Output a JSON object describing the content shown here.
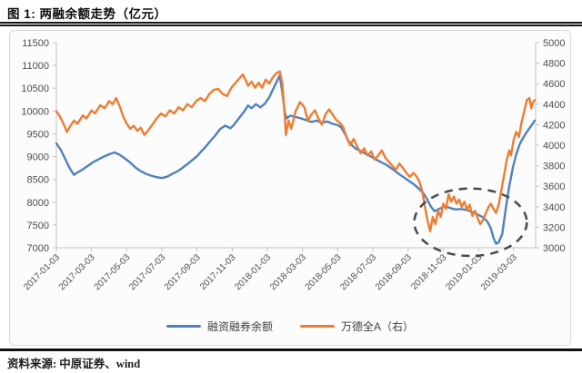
{
  "title": "图 1: 两融余额走势（亿元）",
  "source_note": "资料来源: 中原证券、wind",
  "colors": {
    "series_blue": "#4f81bd",
    "series_orange": "#ed7d31",
    "axis_text": "#4d4d4d",
    "axis_line": "#c3c3c3",
    "annotation": "#4a4a4a",
    "panel_border": "#d8d8d8",
    "rule": "#161616"
  },
  "legend": {
    "items": [
      {
        "label": "融资融券余额",
        "color": "#4f81bd"
      },
      {
        "label": "万德全A（右）",
        "color": "#ed7d31"
      }
    ]
  },
  "chart_data": {
    "type": "line",
    "title": "两融余额走势（亿元）",
    "grid": false,
    "legend_position": "bottom",
    "x_ticks": [
      "2017-01-03",
      "2017-03-03",
      "2017-05-03",
      "2017-07-03",
      "2017-09-03",
      "2017-11-03",
      "2018-01-03",
      "2018-03-03",
      "2018-05-03",
      "2018-07-03",
      "2018-09-03",
      "2018-11-03",
      "2019-01-03",
      "2019-03-03"
    ],
    "x_tick_month_index": [
      0,
      2,
      4,
      6,
      8,
      10,
      12,
      14,
      16,
      18,
      20,
      22,
      24,
      26
    ],
    "x_range_months": [
      0,
      27.25
    ],
    "left_axis": {
      "min": 7000,
      "max": 11500,
      "tick_step": 500,
      "ticks": [
        11500,
        11000,
        10500,
        10000,
        9500,
        9000,
        8500,
        8000,
        7500,
        7000
      ]
    },
    "right_axis": {
      "min": 3000,
      "max": 5000,
      "tick_step": 200,
      "ticks": [
        5000,
        4800,
        4600,
        4400,
        4200,
        4000,
        3800,
        3600,
        3400,
        3200,
        3000
      ]
    },
    "series": [
      {
        "name": "融资融券余额",
        "axis": "left",
        "color": "#4f81bd",
        "points": [
          [
            0,
            9290
          ],
          [
            0.25,
            9150
          ],
          [
            0.5,
            8950
          ],
          [
            0.75,
            8750
          ],
          [
            1,
            8600
          ],
          [
            1.2,
            8650
          ],
          [
            1.5,
            8720
          ],
          [
            1.8,
            8800
          ],
          [
            2.1,
            8880
          ],
          [
            2.4,
            8940
          ],
          [
            2.7,
            9000
          ],
          [
            3,
            9050
          ],
          [
            3.3,
            9090
          ],
          [
            3.6,
            9040
          ],
          [
            3.9,
            8960
          ],
          [
            4.2,
            8870
          ],
          [
            4.5,
            8760
          ],
          [
            4.8,
            8680
          ],
          [
            5.1,
            8620
          ],
          [
            5.4,
            8580
          ],
          [
            5.7,
            8550
          ],
          [
            6,
            8530
          ],
          [
            6.3,
            8560
          ],
          [
            6.6,
            8620
          ],
          [
            6.9,
            8680
          ],
          [
            7.2,
            8760
          ],
          [
            7.5,
            8850
          ],
          [
            7.75,
            8930
          ],
          [
            8,
            9010
          ],
          [
            8.25,
            9120
          ],
          [
            8.5,
            9220
          ],
          [
            8.75,
            9340
          ],
          [
            9,
            9450
          ],
          [
            9.3,
            9600
          ],
          [
            9.6,
            9680
          ],
          [
            9.9,
            9620
          ],
          [
            10.1,
            9700
          ],
          [
            10.4,
            9850
          ],
          [
            10.7,
            10000
          ],
          [
            10.9,
            10120
          ],
          [
            11.1,
            10060
          ],
          [
            11.35,
            10150
          ],
          [
            11.6,
            10080
          ],
          [
            11.85,
            10160
          ],
          [
            12.1,
            10300
          ],
          [
            12.35,
            10500
          ],
          [
            12.7,
            10780
          ],
          [
            12.85,
            10400
          ],
          [
            13,
            9950
          ],
          [
            13.1,
            9840
          ],
          [
            13.3,
            9900
          ],
          [
            13.6,
            9870
          ],
          [
            13.9,
            9840
          ],
          [
            14.2,
            9800
          ],
          [
            14.5,
            9760
          ],
          [
            14.8,
            9790
          ],
          [
            15.1,
            9740
          ],
          [
            15.4,
            9770
          ],
          [
            15.7,
            9720
          ],
          [
            16,
            9690
          ],
          [
            16.2,
            9640
          ],
          [
            16.4,
            9500
          ],
          [
            16.6,
            9350
          ],
          [
            16.8,
            9250
          ],
          [
            17,
            9180
          ],
          [
            17.3,
            9120
          ],
          [
            17.6,
            9060
          ],
          [
            17.9,
            9000
          ],
          [
            18.2,
            8930
          ],
          [
            18.5,
            8870
          ],
          [
            18.8,
            8810
          ],
          [
            19.1,
            8730
          ],
          [
            19.4,
            8640
          ],
          [
            19.7,
            8560
          ],
          [
            20,
            8480
          ],
          [
            20.3,
            8400
          ],
          [
            20.6,
            8300
          ],
          [
            20.9,
            8180
          ],
          [
            21.1,
            8050
          ],
          [
            21.3,
            7900
          ],
          [
            21.5,
            7800
          ],
          [
            21.8,
            7860
          ],
          [
            22.1,
            7910
          ],
          [
            22.4,
            7870
          ],
          [
            22.7,
            7840
          ],
          [
            23,
            7850
          ],
          [
            23.3,
            7830
          ],
          [
            23.6,
            7790
          ],
          [
            23.9,
            7740
          ],
          [
            24.2,
            7680
          ],
          [
            24.5,
            7580
          ],
          [
            24.7,
            7430
          ],
          [
            24.85,
            7220
          ],
          [
            25,
            7090
          ],
          [
            25.15,
            7120
          ],
          [
            25.35,
            7300
          ],
          [
            25.55,
            7850
          ],
          [
            25.75,
            8350
          ],
          [
            25.95,
            8750
          ],
          [
            26.15,
            9050
          ],
          [
            26.35,
            9280
          ],
          [
            26.55,
            9420
          ],
          [
            26.75,
            9540
          ],
          [
            26.95,
            9650
          ],
          [
            27.2,
            9790
          ]
        ]
      },
      {
        "name": "万德全A（右）",
        "axis": "right",
        "color": "#ed7d31",
        "points": [
          [
            0,
            4330
          ],
          [
            0.2,
            4280
          ],
          [
            0.4,
            4210
          ],
          [
            0.6,
            4130
          ],
          [
            0.8,
            4190
          ],
          [
            1,
            4240
          ],
          [
            1.2,
            4210
          ],
          [
            1.5,
            4290
          ],
          [
            1.7,
            4260
          ],
          [
            2,
            4340
          ],
          [
            2.2,
            4310
          ],
          [
            2.5,
            4390
          ],
          [
            2.75,
            4360
          ],
          [
            3,
            4430
          ],
          [
            3.2,
            4400
          ],
          [
            3.4,
            4460
          ],
          [
            3.6,
            4380
          ],
          [
            3.8,
            4280
          ],
          [
            4,
            4210
          ],
          [
            4.2,
            4160
          ],
          [
            4.4,
            4190
          ],
          [
            4.6,
            4140
          ],
          [
            4.8,
            4170
          ],
          [
            5,
            4100
          ],
          [
            5.2,
            4140
          ],
          [
            5.45,
            4200
          ],
          [
            5.7,
            4260
          ],
          [
            5.95,
            4310
          ],
          [
            6.2,
            4280
          ],
          [
            6.45,
            4340
          ],
          [
            6.7,
            4310
          ],
          [
            6.95,
            4370
          ],
          [
            7.2,
            4340
          ],
          [
            7.45,
            4400
          ],
          [
            7.7,
            4370
          ],
          [
            7.95,
            4430
          ],
          [
            8.2,
            4460
          ],
          [
            8.45,
            4430
          ],
          [
            8.7,
            4500
          ],
          [
            8.95,
            4540
          ],
          [
            9.2,
            4550
          ],
          [
            9.45,
            4500
          ],
          [
            9.7,
            4480
          ],
          [
            9.95,
            4560
          ],
          [
            10.2,
            4610
          ],
          [
            10.45,
            4660
          ],
          [
            10.6,
            4690
          ],
          [
            10.75,
            4640
          ],
          [
            10.9,
            4580
          ],
          [
            11.1,
            4620
          ],
          [
            11.3,
            4560
          ],
          [
            11.5,
            4610
          ],
          [
            11.7,
            4560
          ],
          [
            11.9,
            4640
          ],
          [
            12.1,
            4600
          ],
          [
            12.3,
            4660
          ],
          [
            12.5,
            4700
          ],
          [
            12.7,
            4720
          ],
          [
            12.85,
            4600
          ],
          [
            13,
            4250
          ],
          [
            13.05,
            4100
          ],
          [
            13.2,
            4240
          ],
          [
            13.35,
            4160
          ],
          [
            13.6,
            4330
          ],
          [
            13.85,
            4420
          ],
          [
            14.1,
            4370
          ],
          [
            14.3,
            4240
          ],
          [
            14.5,
            4300
          ],
          [
            14.7,
            4340
          ],
          [
            14.9,
            4260
          ],
          [
            15.1,
            4200
          ],
          [
            15.3,
            4300
          ],
          [
            15.5,
            4350
          ],
          [
            15.7,
            4300
          ],
          [
            15.9,
            4250
          ],
          [
            16.1,
            4220
          ],
          [
            16.3,
            4180
          ],
          [
            16.5,
            4080
          ],
          [
            16.7,
            4000
          ],
          [
            16.9,
            4060
          ],
          [
            17.1,
            3990
          ],
          [
            17.3,
            3920
          ],
          [
            17.5,
            3970
          ],
          [
            17.7,
            3900
          ],
          [
            17.9,
            3940
          ],
          [
            18.1,
            3860
          ],
          [
            18.3,
            3900
          ],
          [
            18.5,
            3950
          ],
          [
            18.7,
            3880
          ],
          [
            18.9,
            3840
          ],
          [
            19.1,
            3800
          ],
          [
            19.3,
            3760
          ],
          [
            19.5,
            3820
          ],
          [
            19.7,
            3780
          ],
          [
            19.9,
            3730
          ],
          [
            20.1,
            3690
          ],
          [
            20.3,
            3730
          ],
          [
            20.5,
            3690
          ],
          [
            20.65,
            3640
          ],
          [
            20.8,
            3550
          ],
          [
            20.95,
            3400
          ],
          [
            21.1,
            3270
          ],
          [
            21.25,
            3160
          ],
          [
            21.4,
            3300
          ],
          [
            21.55,
            3230
          ],
          [
            21.7,
            3360
          ],
          [
            21.85,
            3300
          ],
          [
            22,
            3430
          ],
          [
            22.15,
            3380
          ],
          [
            22.3,
            3520
          ],
          [
            22.45,
            3450
          ],
          [
            22.6,
            3500
          ],
          [
            22.75,
            3430
          ],
          [
            22.9,
            3470
          ],
          [
            23.05,
            3400
          ],
          [
            23.2,
            3450
          ],
          [
            23.35,
            3370
          ],
          [
            23.5,
            3420
          ],
          [
            23.65,
            3310
          ],
          [
            23.8,
            3360
          ],
          [
            23.95,
            3290
          ],
          [
            24.1,
            3230
          ],
          [
            24.25,
            3270
          ],
          [
            24.4,
            3330
          ],
          [
            24.55,
            3390
          ],
          [
            24.7,
            3430
          ],
          [
            24.85,
            3380
          ],
          [
            25,
            3340
          ],
          [
            25.15,
            3420
          ],
          [
            25.3,
            3560
          ],
          [
            25.45,
            3700
          ],
          [
            25.6,
            3850
          ],
          [
            25.75,
            3950
          ],
          [
            25.85,
            3900
          ],
          [
            26,
            4050
          ],
          [
            26.15,
            4130
          ],
          [
            26.3,
            4080
          ],
          [
            26.45,
            4220
          ],
          [
            26.6,
            4330
          ],
          [
            26.75,
            4440
          ],
          [
            26.9,
            4460
          ],
          [
            27,
            4360
          ],
          [
            27.1,
            4420
          ],
          [
            27.2,
            4440
          ]
        ]
      }
    ],
    "annotation": {
      "type": "dashed-ellipse",
      "center_month": 23.55,
      "center_left_value": 7560,
      "radius_months": 3.2,
      "radius_left_value": 740
    }
  }
}
